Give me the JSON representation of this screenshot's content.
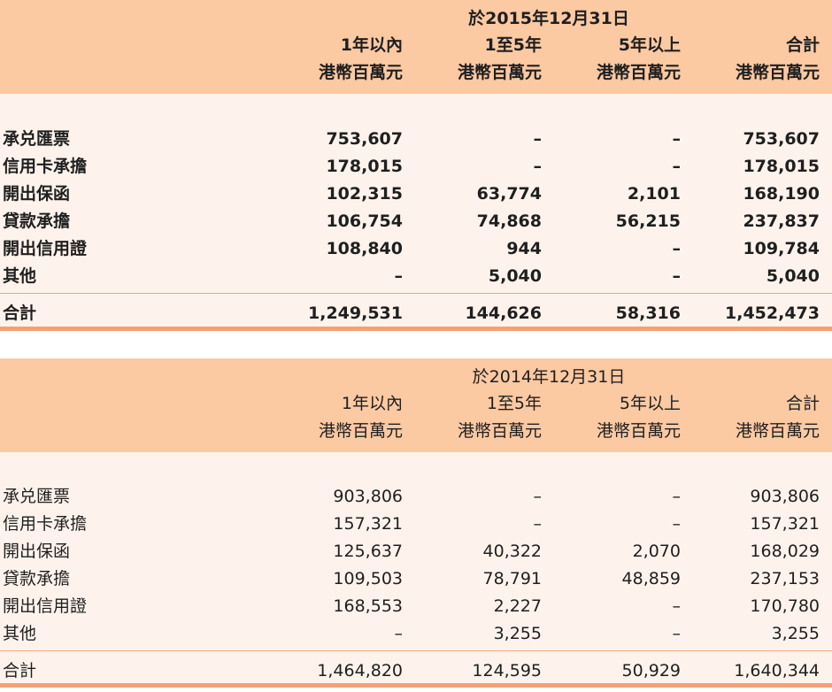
{
  "tables": [
    {
      "period": "於2015年12月31日",
      "columns": [
        {
          "line1": "1年以內",
          "line2": "港幣百萬元"
        },
        {
          "line1": "1至5年",
          "line2": "港幣百萬元"
        },
        {
          "line1": "5年以上",
          "line2": "港幣百萬元"
        },
        {
          "line1": "合計",
          "line2": "港幣百萬元"
        }
      ],
      "rows": [
        {
          "label": "承兑匯票",
          "values": [
            "753,607",
            "–",
            "–",
            "753,607"
          ]
        },
        {
          "label": "信用卡承擔",
          "values": [
            "178,015",
            "–",
            "–",
            "178,015"
          ]
        },
        {
          "label": "開出保函",
          "values": [
            "102,315",
            "63,774",
            "2,101",
            "168,190"
          ]
        },
        {
          "label": "貸款承擔",
          "values": [
            "106,754",
            "74,868",
            "56,215",
            "237,837"
          ]
        },
        {
          "label": "開出信用證",
          "values": [
            "108,840",
            "944",
            "–",
            "109,784"
          ]
        },
        {
          "label": "其他",
          "values": [
            "–",
            "5,040",
            "–",
            "5,040"
          ]
        }
      ],
      "total": {
        "label": "合計",
        "values": [
          "1,249,531",
          "144,626",
          "58,316",
          "1,452,473"
        ]
      }
    },
    {
      "period": "於2014年12月31日",
      "columns": [
        {
          "line1": "1年以內",
          "line2": "港幣百萬元"
        },
        {
          "line1": "1至5年",
          "line2": "港幣百萬元"
        },
        {
          "line1": "5年以上",
          "line2": "港幣百萬元"
        },
        {
          "line1": "合計",
          "line2": "港幣百萬元"
        }
      ],
      "rows": [
        {
          "label": "承兑匯票",
          "values": [
            "903,806",
            "–",
            "–",
            "903,806"
          ]
        },
        {
          "label": "信用卡承擔",
          "values": [
            "157,321",
            "–",
            "–",
            "157,321"
          ]
        },
        {
          "label": "開出保函",
          "values": [
            "125,637",
            "40,322",
            "2,070",
            "168,029"
          ]
        },
        {
          "label": "貸款承擔",
          "values": [
            "109,503",
            "78,791",
            "48,859",
            "237,153"
          ]
        },
        {
          "label": "開出信用證",
          "values": [
            "168,553",
            "2,227",
            "–",
            "170,780"
          ]
        },
        {
          "label": "其他",
          "values": [
            "–",
            "3,255",
            "–",
            "3,255"
          ]
        }
      ],
      "total": {
        "label": "合計",
        "values": [
          "1,464,820",
          "124,595",
          "50,929",
          "1,640,344"
        ]
      }
    }
  ],
  "colors": {
    "header": "#fbc9a2",
    "band": "#fef3ec",
    "rule": "#f4a174"
  }
}
